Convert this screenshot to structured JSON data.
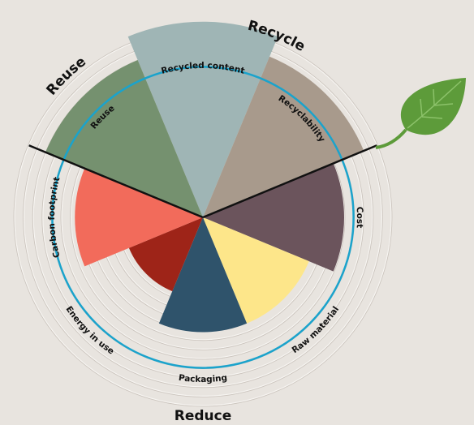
{
  "chart_data": {
    "type": "polar",
    "categories": [
      "Recycled content",
      "Recyclability",
      "Cost",
      "Raw material",
      "Packaging",
      "Energy in use",
      "Carbon footprint",
      "Reuse"
    ],
    "values": [
      20.8,
      18.5,
      15,
      12.2,
      12.2,
      8.5,
      13.6,
      18.1
    ],
    "colors": [
      "#9fb5b5",
      "#a89a8c",
      "#6b545c",
      "#fde68a",
      "#2f536b",
      "#9e2418",
      "#f26b5b",
      "#75916f"
    ],
    "groups": [
      "Reuse",
      "Recycle",
      "Reduce"
    ],
    "rlim": [
      0,
      20
    ],
    "rticks": [
      7,
      8,
      9,
      10,
      11,
      12,
      13,
      14,
      15,
      16,
      17,
      18,
      19,
      20
    ],
    "target": 16,
    "target_color": "#1aa3cc",
    "grid": true
  }
}
